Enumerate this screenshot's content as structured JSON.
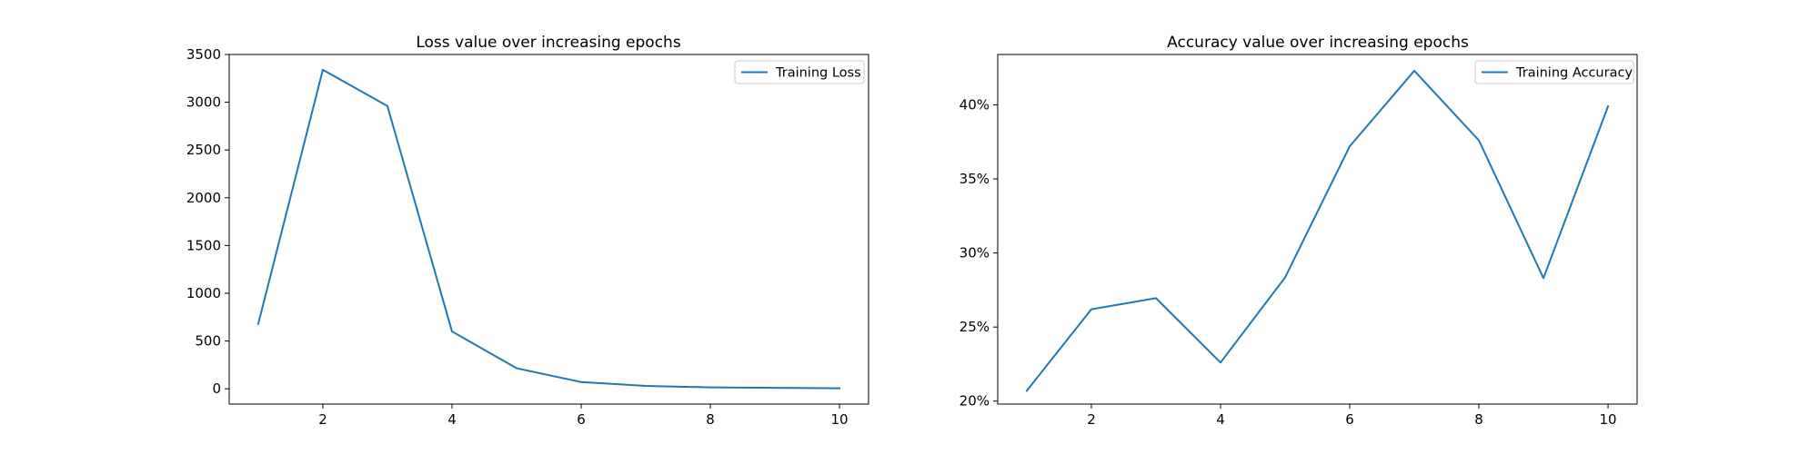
{
  "chart_data": [
    {
      "type": "line",
      "title": "Loss value over increasing epochs",
      "xlabel": "",
      "ylabel": "",
      "x": [
        1,
        2,
        3,
        4,
        5,
        6,
        7,
        8,
        9,
        10
      ],
      "series": [
        {
          "name": "Training Loss",
          "values": [
            680,
            3340,
            2960,
            600,
            215,
            70,
            30,
            15,
            10,
            5
          ],
          "color": "#1f77b4"
        }
      ],
      "xlim": [
        0.55,
        10.45
      ],
      "ylim": [
        -160,
        3500
      ],
      "xticks": [
        2,
        4,
        6,
        8,
        10
      ],
      "xtick_labels": [
        "2",
        "4",
        "6",
        "8",
        "10"
      ],
      "yticks": [
        0,
        500,
        1000,
        1500,
        2000,
        2500,
        3000,
        3500
      ],
      "ytick_labels": [
        "0",
        "500",
        "1000",
        "1500",
        "2000",
        "2500",
        "3000",
        "3500"
      ],
      "legend_position": "top-right",
      "grid": false
    },
    {
      "type": "line",
      "title": "Accuracy value over increasing epochs",
      "xlabel": "",
      "ylabel": "",
      "x": [
        1,
        2,
        3,
        4,
        5,
        6,
        7,
        8,
        9,
        10
      ],
      "series": [
        {
          "name": "Training Accuracy",
          "values": [
            20.7,
            26.2,
            26.95,
            22.6,
            28.35,
            37.2,
            42.3,
            37.6,
            28.3,
            39.9
          ],
          "color": "#1f77b4"
        }
      ],
      "xlim": [
        0.55,
        10.45
      ],
      "ylim": [
        19.8,
        43.4
      ],
      "xticks": [
        2,
        4,
        6,
        8,
        10
      ],
      "xtick_labels": [
        "2",
        "4",
        "6",
        "8",
        "10"
      ],
      "yticks": [
        20,
        25,
        30,
        35,
        40
      ],
      "ytick_labels": [
        "20%",
        "25%",
        "30%",
        "35%",
        "40%"
      ],
      "legend_position": "top-right",
      "grid": false
    }
  ]
}
